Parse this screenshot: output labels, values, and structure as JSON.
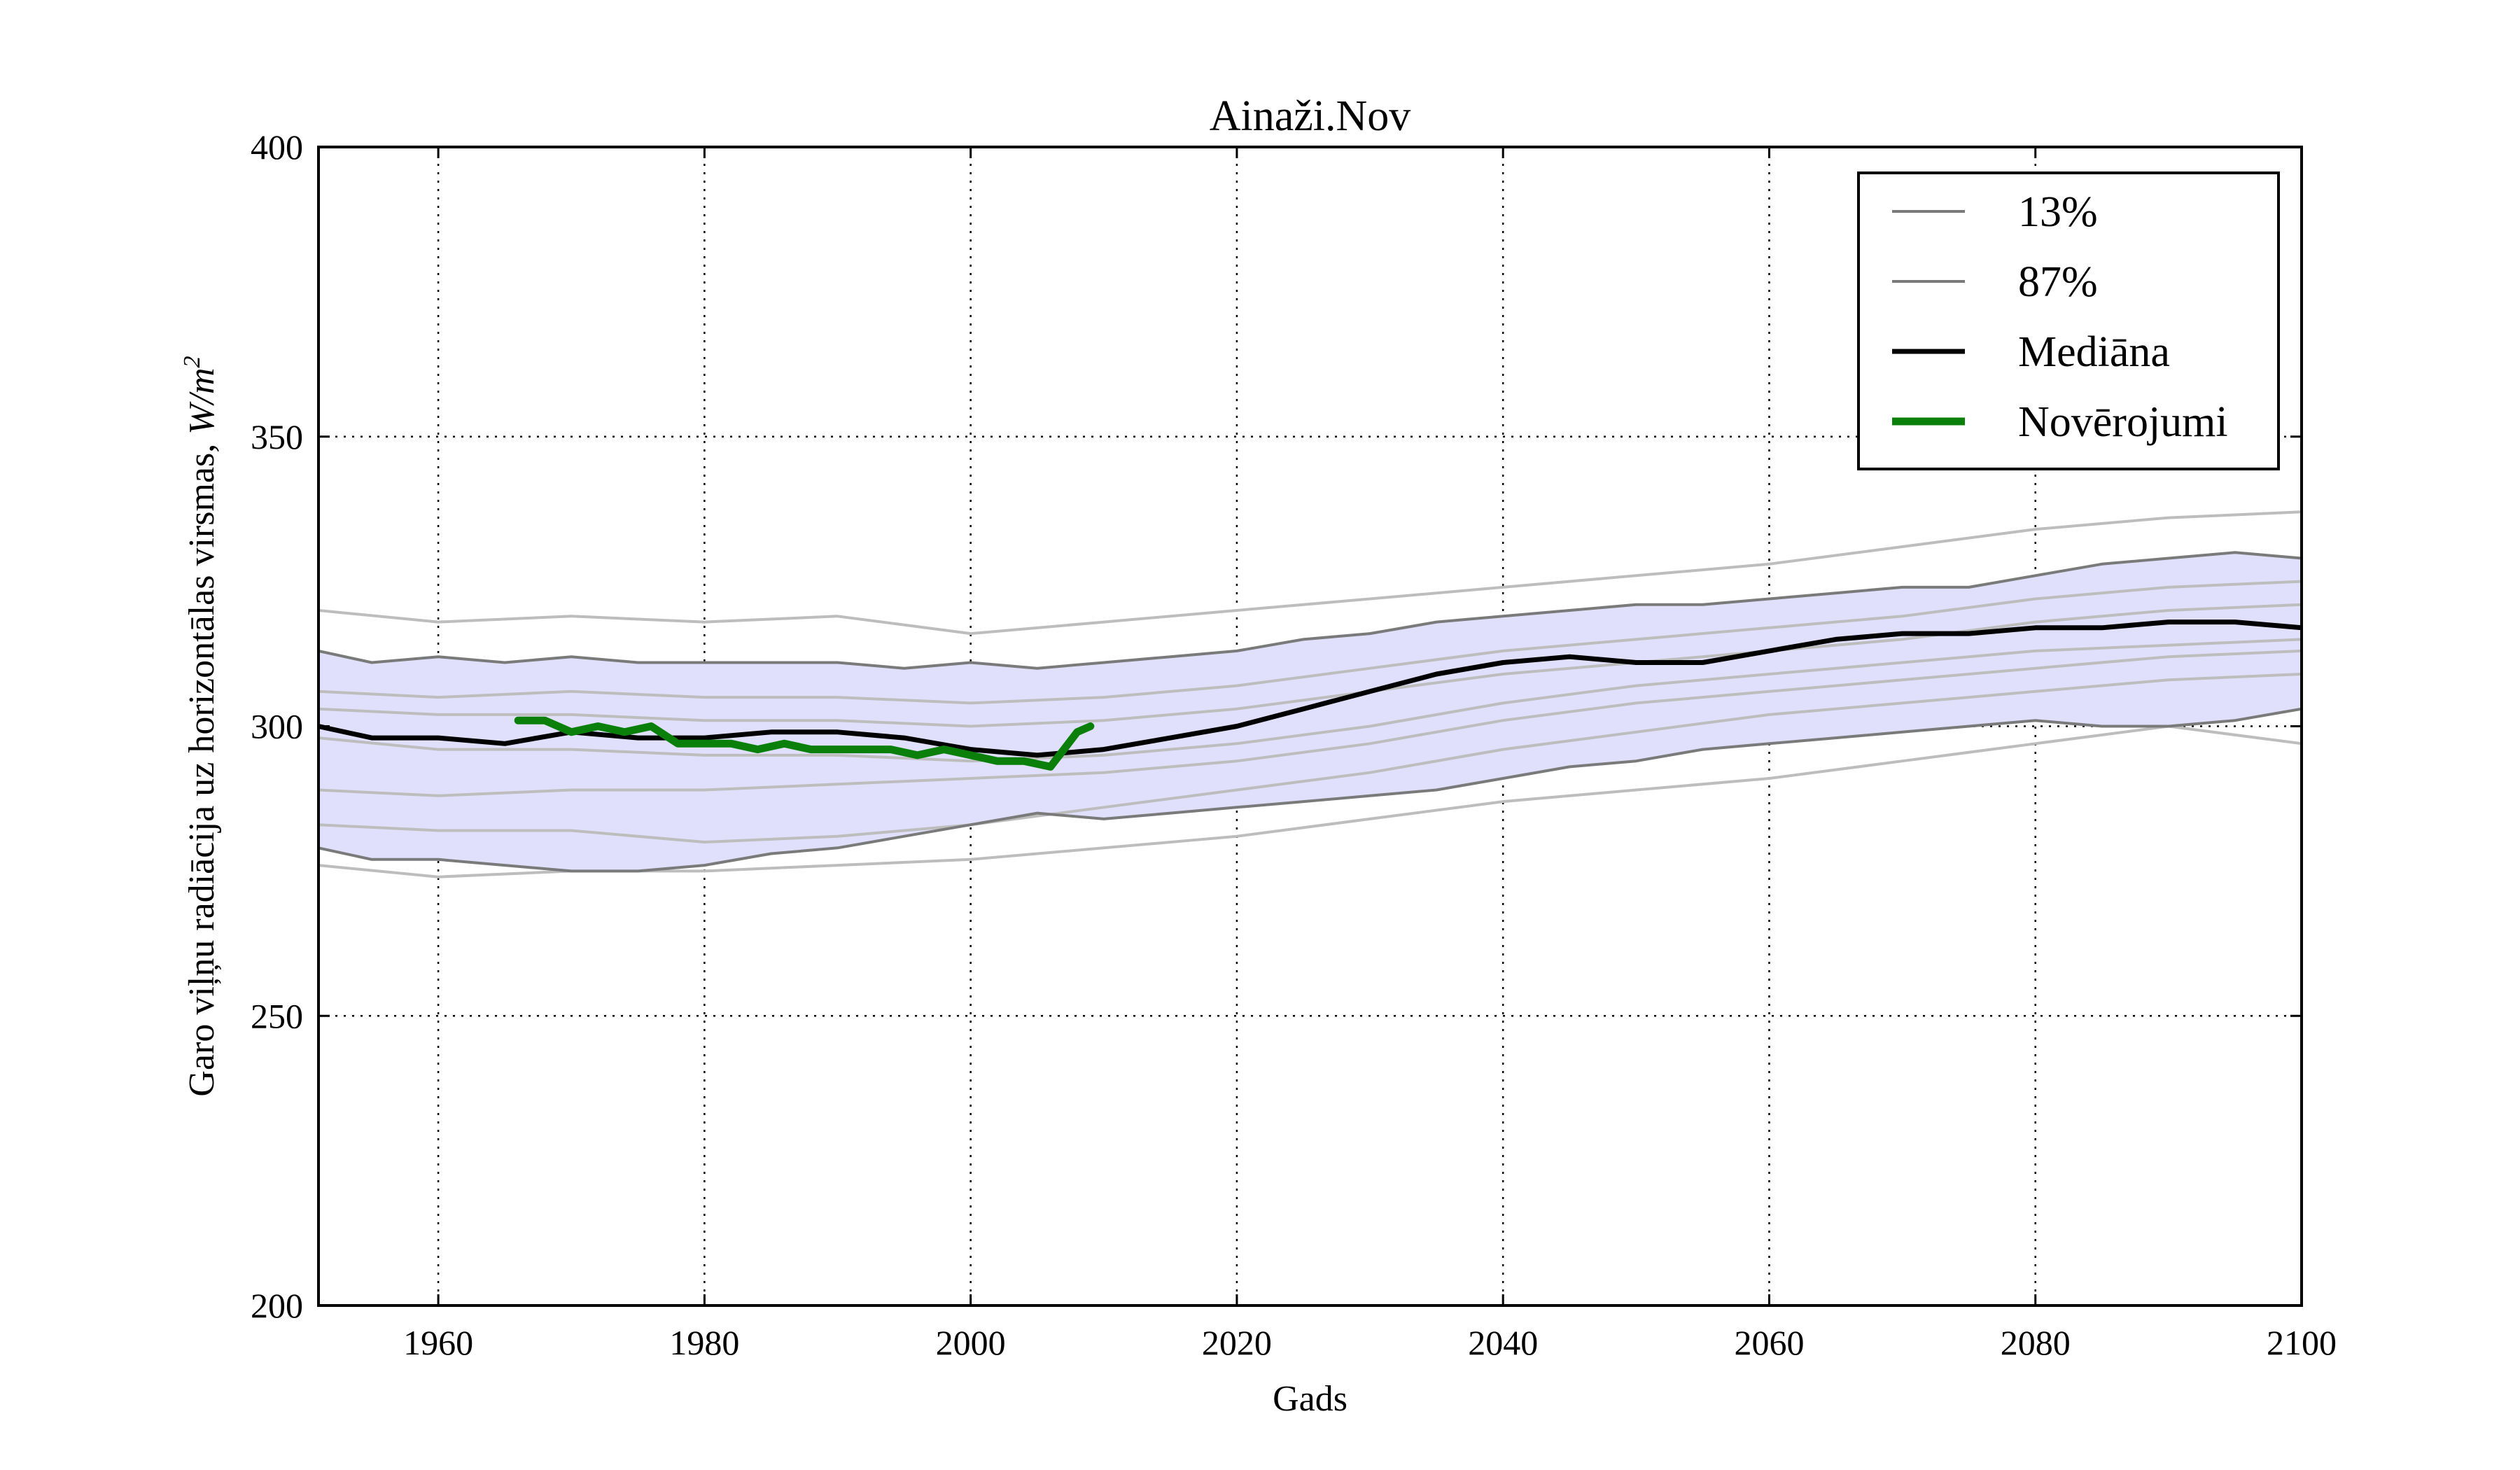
{
  "chart_data": {
    "type": "line",
    "title": "Ainaži.Nov",
    "xlabel": "Gads",
    "ylabel_text": "Garo viļņu radiācija uz horizontālas virsmas, ",
    "ylabel_units": "W/m",
    "ylabel_units_sup": "2",
    "xlim": [
      1951,
      2100
    ],
    "ylim": [
      200,
      400
    ],
    "xticks": [
      1960,
      1980,
      2000,
      2020,
      2040,
      2060,
      2080,
      2100
    ],
    "yticks": [
      200,
      250,
      300,
      350,
      400
    ],
    "grid": true,
    "legend_position": "top-right",
    "colors": {
      "band_fill": "#e0e0fc",
      "band_edge": "#7a7a7a",
      "model_light": "#bdbdbd",
      "median": "#000000",
      "observations": "#0a7f0a"
    },
    "legend": [
      {
        "label": "13%",
        "style": "band_edge"
      },
      {
        "label": "87%",
        "style": "band_edge"
      },
      {
        "label": "Mediāna",
        "style": "median"
      },
      {
        "label": "Novērojumi",
        "style": "observations"
      }
    ],
    "series": [
      {
        "name": "87%",
        "role": "upper",
        "x": [
          1951,
          1955,
          1960,
          1965,
          1970,
          1975,
          1980,
          1985,
          1990,
          1995,
          2000,
          2005,
          2010,
          2015,
          2020,
          2025,
          2030,
          2035,
          2040,
          2045,
          2050,
          2055,
          2060,
          2065,
          2070,
          2075,
          2080,
          2085,
          2090,
          2095,
          2100
        ],
        "y": [
          313,
          311,
          312,
          311,
          312,
          311,
          311,
          311,
          311,
          310,
          311,
          310,
          311,
          312,
          313,
          315,
          316,
          318,
          319,
          320,
          321,
          321,
          322,
          323,
          324,
          324,
          326,
          328,
          329,
          330,
          329
        ]
      },
      {
        "name": "13%",
        "role": "lower",
        "x": [
          1951,
          1955,
          1960,
          1965,
          1970,
          1975,
          1980,
          1985,
          1990,
          1995,
          2000,
          2005,
          2010,
          2015,
          2020,
          2025,
          2030,
          2035,
          2040,
          2045,
          2050,
          2055,
          2060,
          2065,
          2070,
          2075,
          2080,
          2085,
          2090,
          2095,
          2100
        ],
        "y": [
          279,
          277,
          277,
          276,
          275,
          275,
          276,
          278,
          279,
          281,
          283,
          285,
          284,
          285,
          286,
          287,
          288,
          289,
          291,
          293,
          294,
          296,
          297,
          298,
          299,
          300,
          301,
          300,
          300,
          301,
          303
        ]
      },
      {
        "name": "Mediāna",
        "role": "median",
        "x": [
          1951,
          1955,
          1960,
          1965,
          1970,
          1975,
          1980,
          1985,
          1990,
          1995,
          2000,
          2005,
          2010,
          2015,
          2020,
          2025,
          2030,
          2035,
          2040,
          2045,
          2050,
          2055,
          2060,
          2065,
          2070,
          2075,
          2080,
          2085,
          2090,
          2095,
          2100
        ],
        "y": [
          300,
          298,
          298,
          297,
          299,
          298,
          298,
          299,
          299,
          298,
          296,
          295,
          296,
          298,
          300,
          303,
          306,
          309,
          311,
          312,
          311,
          311,
          313,
          315,
          316,
          316,
          317,
          317,
          318,
          318,
          317
        ]
      },
      {
        "name": "Novērojumi",
        "role": "observations",
        "x": [
          1966,
          1968,
          1970,
          1972,
          1974,
          1976,
          1978,
          1980,
          1982,
          1984,
          1986,
          1988,
          1990,
          1992,
          1994,
          1996,
          1998,
          2000,
          2002,
          2004,
          2006,
          2007,
          2008,
          2009
        ],
        "y": [
          301,
          301,
          299,
          300,
          299,
          300,
          297,
          297,
          297,
          296,
          297,
          296,
          296,
          296,
          296,
          295,
          296,
          295,
          294,
          294,
          293,
          296,
          299,
          300
        ]
      },
      {
        "role": "model",
        "x": [
          1951,
          1960,
          1970,
          1980,
          1990,
          2000,
          2010,
          2020,
          2030,
          2040,
          2050,
          2060,
          2070,
          2080,
          2090,
          2100
        ],
        "y": [
          320,
          318,
          319,
          318,
          319,
          316,
          318,
          320,
          322,
          324,
          326,
          328,
          331,
          334,
          336,
          337
        ]
      },
      {
        "role": "model",
        "x": [
          1951,
          1960,
          1970,
          1980,
          1990,
          2000,
          2010,
          2020,
          2030,
          2040,
          2050,
          2060,
          2070,
          2080,
          2090,
          2100
        ],
        "y": [
          306,
          305,
          306,
          305,
          305,
          304,
          305,
          307,
          310,
          313,
          315,
          317,
          319,
          322,
          324,
          325
        ]
      },
      {
        "role": "model",
        "x": [
          1951,
          1960,
          1970,
          1980,
          1990,
          2000,
          2010,
          2020,
          2030,
          2040,
          2050,
          2060,
          2070,
          2080,
          2090,
          2100
        ],
        "y": [
          303,
          302,
          302,
          301,
          301,
          300,
          301,
          303,
          306,
          309,
          311,
          313,
          315,
          318,
          320,
          321
        ]
      },
      {
        "role": "model",
        "x": [
          1951,
          1960,
          1970,
          1980,
          1990,
          2000,
          2010,
          2020,
          2030,
          2040,
          2050,
          2060,
          2070,
          2080,
          2090,
          2100
        ],
        "y": [
          298,
          296,
          296,
          295,
          295,
          294,
          295,
          297,
          300,
          304,
          307,
          309,
          311,
          313,
          314,
          315
        ]
      },
      {
        "role": "model",
        "x": [
          1951,
          1960,
          1970,
          1980,
          1990,
          2000,
          2010,
          2020,
          2030,
          2040,
          2050,
          2060,
          2070,
          2080,
          2090,
          2100
        ],
        "y": [
          289,
          288,
          289,
          289,
          290,
          291,
          292,
          294,
          297,
          301,
          304,
          306,
          308,
          310,
          312,
          313
        ]
      },
      {
        "role": "model",
        "x": [
          1951,
          1960,
          1970,
          1980,
          1990,
          2000,
          2010,
          2020,
          2030,
          2040,
          2050,
          2060,
          2070,
          2080,
          2090,
          2100
        ],
        "y": [
          283,
          282,
          282,
          280,
          281,
          283,
          286,
          289,
          292,
          296,
          299,
          302,
          304,
          306,
          308,
          309
        ]
      },
      {
        "role": "model",
        "x": [
          1951,
          1960,
          1970,
          1980,
          1990,
          2000,
          2010,
          2020,
          2030,
          2040,
          2050,
          2060,
          2070,
          2080,
          2090,
          2100
        ],
        "y": [
          276,
          274,
          275,
          275,
          276,
          277,
          279,
          281,
          284,
          287,
          289,
          291,
          294,
          297,
          300,
          297
        ]
      }
    ]
  }
}
